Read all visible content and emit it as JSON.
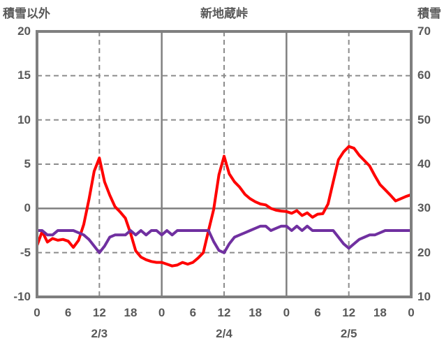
{
  "header": {
    "left_axis_title": "積雪以外",
    "station_title": "新地蔵峠",
    "right_axis_title": "積雪"
  },
  "chart_data": {
    "type": "line",
    "title": "新地蔵峠",
    "left_axis": {
      "label": "積雪以外",
      "min": -10,
      "max": 20,
      "ticks": [
        20,
        15,
        10,
        5,
        0,
        -5,
        -10
      ]
    },
    "right_axis": {
      "label": "積雪",
      "min": 10,
      "max": 70,
      "ticks": [
        70,
        60,
        50,
        40,
        30,
        20,
        10
      ]
    },
    "x_axis": {
      "total_hours": 72,
      "tick_step_hours": 6,
      "tick_labels": [
        "0",
        "6",
        "12",
        "18",
        "0",
        "6",
        "12",
        "18",
        "0",
        "6",
        "12",
        "18",
        "0"
      ],
      "date_labels": [
        {
          "label": "2/3",
          "t": 12
        },
        {
          "label": "2/4",
          "t": 36
        },
        {
          "label": "2/5",
          "t": 60
        }
      ],
      "noon_dashed_lines_t": [
        12,
        36,
        60
      ],
      "midnight_solid_lines_t": [
        24,
        48
      ]
    },
    "grid": {
      "dashed_horizontal_at_left_values": [
        15,
        10,
        5,
        -5
      ],
      "solid_horizontal_at_left_value": 0,
      "legend_shown": false
    },
    "series": [
      {
        "name": "積雪以外",
        "axis": "left",
        "color": "#ff0000",
        "step_hours": 1,
        "values": [
          -4.2,
          -2.6,
          -3.8,
          -3.4,
          -3.6,
          -3.5,
          -3.7,
          -4.4,
          -3.6,
          -1.8,
          1.0,
          4.2,
          5.7,
          3.0,
          1.5,
          0.2,
          -0.4,
          -1.1,
          -2.8,
          -4.8,
          -5.5,
          -5.8,
          -6.0,
          -6.1,
          -6.1,
          -6.3,
          -6.5,
          -6.4,
          -6.1,
          -6.3,
          -6.1,
          -5.6,
          -5.0,
          -2.5,
          -0.1,
          3.8,
          5.9,
          3.9,
          3.0,
          2.4,
          1.6,
          1.1,
          0.75,
          0.5,
          0.4,
          0.0,
          -0.2,
          -0.3,
          -0.35,
          -0.55,
          -0.25,
          -0.8,
          -0.5,
          -1.0,
          -0.65,
          -0.6,
          0.5,
          3.0,
          5.5,
          6.4,
          7.0,
          6.8,
          6.0,
          5.4,
          4.8,
          3.7,
          2.7,
          2.1,
          1.5,
          0.85,
          1.1,
          1.35,
          1.55
        ]
      },
      {
        "name": "積雪",
        "axis": "right",
        "color": "#7030a0",
        "step_hours": 1,
        "values": [
          25,
          25,
          24,
          24,
          25,
          25,
          25,
          25,
          24.5,
          24,
          23,
          21.5,
          20,
          21.5,
          23.5,
          24,
          24,
          24,
          25,
          24,
          25,
          24,
          25,
          25,
          24,
          25,
          24,
          25,
          25,
          25,
          25,
          25,
          25,
          25,
          22.5,
          20.5,
          20,
          22,
          23.5,
          24,
          24.5,
          25,
          25.5,
          26,
          26,
          25,
          25.5,
          26,
          26,
          25,
          26,
          25,
          26,
          25,
          25,
          25,
          25,
          25,
          23.5,
          22,
          21,
          22,
          23,
          23.5,
          24,
          24,
          24.5,
          25,
          25,
          25,
          25,
          25,
          25
        ]
      }
    ],
    "colors": {
      "border": "#7f7f7f",
      "solid_grid": "#7f7f7f",
      "dashed_grid": "#8c8c8c",
      "text": "#595959",
      "background": "#ffffff"
    }
  }
}
